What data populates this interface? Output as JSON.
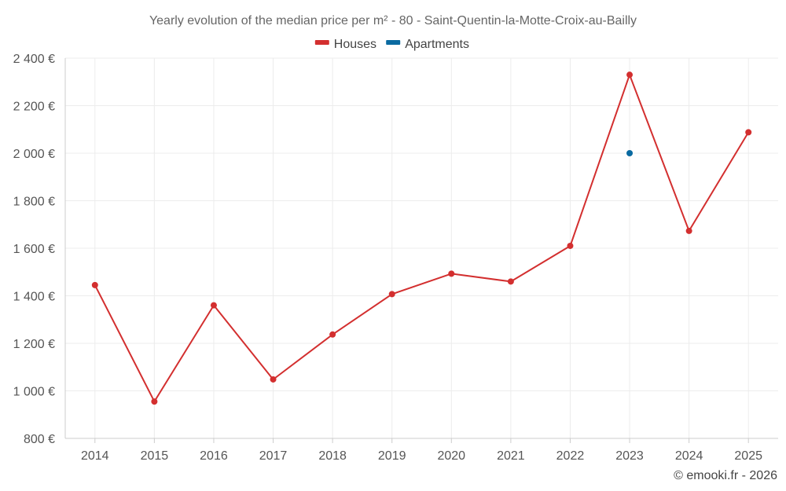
{
  "chart_data": {
    "type": "line",
    "title": "Yearly evolution of the median price per m² - 80 - Saint-Quentin-la-Motte-Croix-au-Bailly",
    "xlabel": "",
    "ylabel": "",
    "categories": [
      "2014",
      "2015",
      "2016",
      "2017",
      "2018",
      "2019",
      "2020",
      "2021",
      "2022",
      "2023",
      "2024",
      "2025"
    ],
    "ylim": [
      800,
      2400
    ],
    "yticks": [
      800,
      1000,
      1200,
      1400,
      1600,
      1800,
      2000,
      2200,
      2400
    ],
    "ytick_labels": [
      "800 €",
      "1 000 €",
      "1 200 €",
      "1 400 €",
      "1 600 €",
      "1 800 €",
      "2 000 €",
      "2 200 €",
      "2 400 €"
    ],
    "grid": true,
    "legend_position": "top-center",
    "series": [
      {
        "name": "Houses",
        "color": "#d32f2f",
        "values": [
          1445,
          955,
          1360,
          1048,
          1237,
          1407,
          1493,
          1460,
          1610,
          2330,
          1673,
          2088
        ]
      },
      {
        "name": "Apartments",
        "color": "#0a6aa1",
        "values": [
          null,
          null,
          null,
          null,
          null,
          null,
          null,
          null,
          null,
          2000,
          null,
          null
        ]
      }
    ]
  },
  "credit": "© emooki.fr - 2026"
}
